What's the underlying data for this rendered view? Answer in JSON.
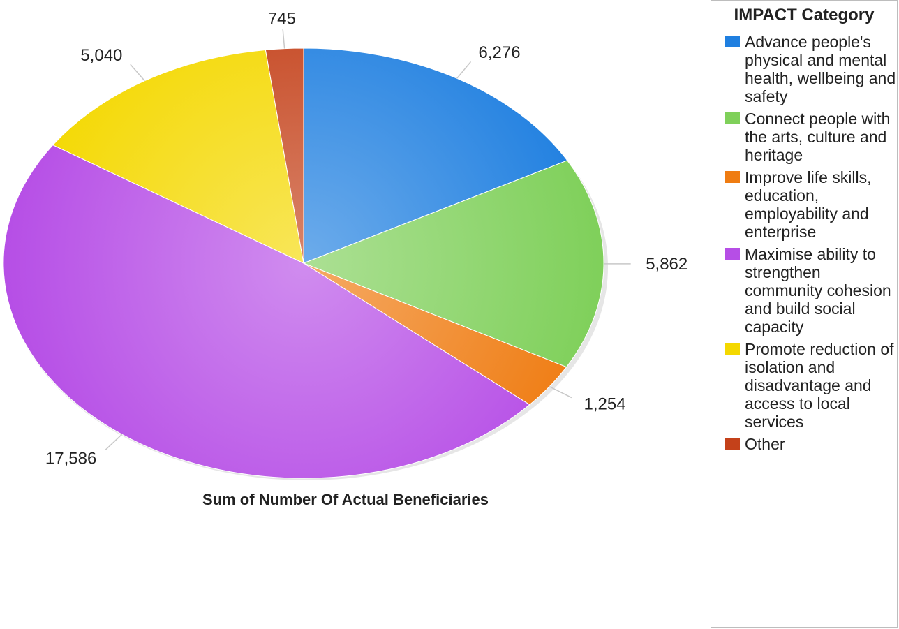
{
  "chart_data": {
    "type": "pie",
    "title": "Sum of Number Of Actual Beneficiaries",
    "legend_title": "IMPACT Category",
    "legend_position": "right",
    "start_angle_deg": 0,
    "direction": "clockwise",
    "slices": [
      {
        "label": "Advance people's physical and mental health, wellbeing and safety",
        "value": 6276,
        "display": "6,276",
        "color": "#1f7fe0"
      },
      {
        "label": "Connect people with the arts, culture and heritage",
        "value": 5862,
        "display": "5,862",
        "color": "#7fd05a"
      },
      {
        "label": "Improve life skills, education, employability and enterprise",
        "value": 1254,
        "display": "1,254",
        "color": "#ef7c12"
      },
      {
        "label": "Maximise ability to strengthen community cohesion and build social capacity",
        "value": 17586,
        "display": "17,586",
        "color": "#b64ee6"
      },
      {
        "label": "Promote reduction of isolation and disadvantage and access to local services",
        "value": 5040,
        "display": "5,040",
        "color": "#f4d800"
      },
      {
        "label": "Other",
        "value": 745,
        "display": "745",
        "color": "#c4411a"
      }
    ]
  }
}
